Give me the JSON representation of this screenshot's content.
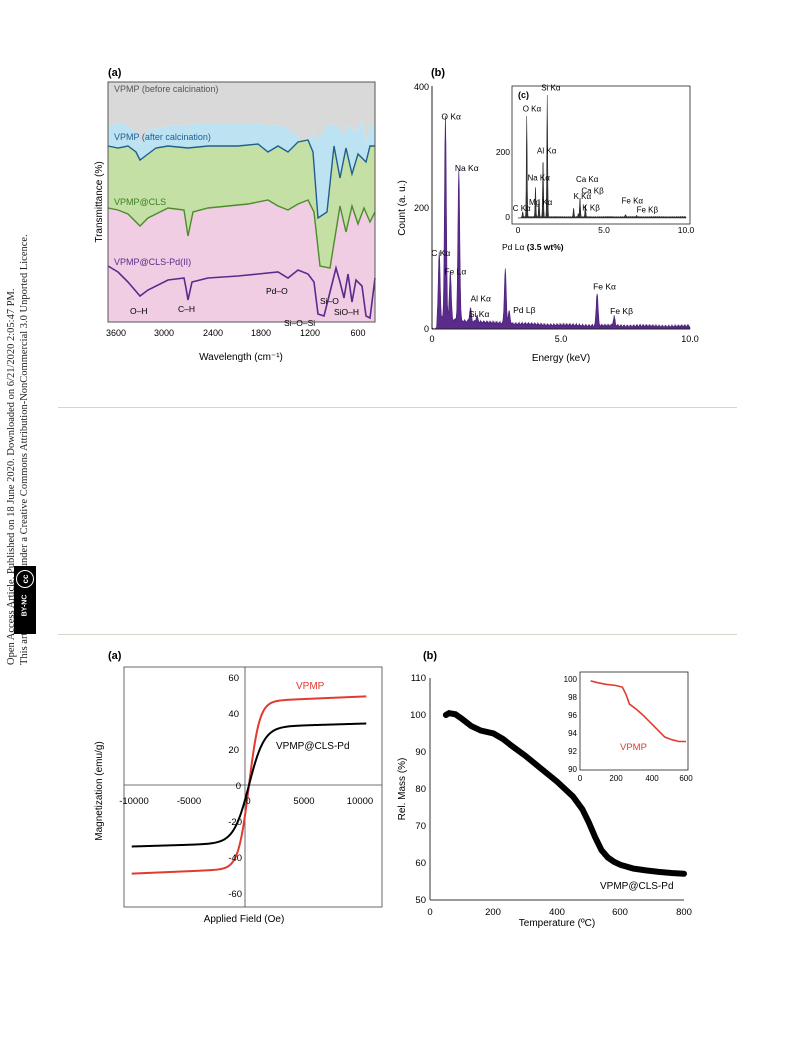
{
  "sidebar": {
    "line1": "Open Access Article. Published on 18 June 2020. Downloaded on 6/21/2020 2:05:47 PM.",
    "line2": "This article is licensed under a Creative Commons Attribution-NonCommercial 3.0 Unported Licence.",
    "badge_cc": "cc",
    "badge_text": "BY-NC"
  },
  "colors": {
    "gray": "#d9d9d9",
    "blue": "#bde3f3",
    "green": "#c5e0a5",
    "pink": "#f0cde3",
    "purple": "#5b2b8c",
    "red": "#e23a30",
    "black": "#000000",
    "line_blue": "#1f5f8f",
    "line_green": "#4a8d2a"
  },
  "chart_data": [
    {
      "panel": "(a)",
      "type": "line",
      "xlabel": "Wavelength (cm⁻¹)",
      "ylabel": "Transmittance (%)",
      "xlim": [
        3700,
        400
      ],
      "xticks": [
        "3600",
        "3000",
        "2400",
        "1800",
        "1200",
        "600"
      ],
      "series": [
        {
          "name": "VPMP (before calcination)"
        },
        {
          "name": "VPMP (after calcination)"
        },
        {
          "name": "VPMP@CLS"
        },
        {
          "name": "VPMP@CLS-Pd(II)"
        }
      ],
      "annotations": [
        "O–H",
        "C–H",
        "Pd–O",
        "Si–O–Si",
        "Si–O",
        "SiO–H"
      ]
    },
    {
      "panel": "(b)",
      "type": "bar",
      "xlabel": "Energy (keV)",
      "ylabel": "Count (a. u.)",
      "xlim": [
        0,
        10
      ],
      "ylim": [
        0,
        400
      ],
      "xticks": [
        "0",
        "5.0",
        "10.0"
      ],
      "yticks": [
        "0",
        "200",
        "400"
      ],
      "peaks": [
        {
          "label": "C Kα",
          "x": 0.28,
          "y": 110
        },
        {
          "label": "O Kα",
          "x": 0.52,
          "y": 335
        },
        {
          "label": "Fe Lα",
          "x": 0.71,
          "y": 80
        },
        {
          "label": "Na Kα",
          "x": 1.04,
          "y": 250
        },
        {
          "label": "Al Kα",
          "x": 1.49,
          "y": 22
        },
        {
          "label": "Si Kα",
          "x": 1.74,
          "y": 10
        },
        {
          "label": "Pd Lα",
          "x": 2.84,
          "y": 90
        },
        {
          "label": "Pd Lβ",
          "x": 2.99,
          "y": 20
        },
        {
          "label": "Fe Kα",
          "x": 6.4,
          "y": 55
        },
        {
          "label": "Fe Kβ",
          "x": 7.06,
          "y": 15
        }
      ],
      "pd_label_suffix": "(3.5 wt%)",
      "inset": {
        "panel": "(c)",
        "xlim": [
          0,
          10
        ],
        "ylim": [
          0,
          310
        ],
        "xticks": [
          "0",
          "5.0",
          "10.0"
        ],
        "yticks": [
          "0",
          "200"
        ],
        "peaks": [
          {
            "label": "C Kα",
            "x": 0.28,
            "y": 12
          },
          {
            "label": "O Kα",
            "x": 0.52,
            "y": 240
          },
          {
            "label": "Na Kα",
            "x": 1.04,
            "y": 70
          },
          {
            "label": "Mg Kα",
            "x": 1.25,
            "y": 45
          },
          {
            "label": "Al Kα",
            "x": 1.49,
            "y": 140
          },
          {
            "label": "Si Kα",
            "x": 1.74,
            "y": 290
          },
          {
            "label": "K Kα",
            "x": 3.31,
            "y": 22
          },
          {
            "label": "K Kβ",
            "x": 3.59,
            "y": 8
          },
          {
            "label": "Ca Kα",
            "x": 3.69,
            "y": 48
          },
          {
            "label": "Ca Kβ",
            "x": 4.01,
            "y": 30
          },
          {
            "label": "Fe Kα",
            "x": 6.4,
            "y": 6
          },
          {
            "label": "Fe Kβ",
            "x": 7.06,
            "y": 3
          }
        ]
      }
    },
    {
      "panel": "(a)",
      "type": "line",
      "xlabel": "Applied Field (Oe)",
      "ylabel": "Magnetization (emu/g)",
      "xlim": [
        -11000,
        11000
      ],
      "ylim": [
        -65,
        65
      ],
      "xticks": [
        "-10000",
        "-5000",
        "0",
        "5000",
        "10000"
      ],
      "yticks": [
        "-60",
        "-40",
        "-20",
        "0",
        "20",
        "40",
        "60"
      ],
      "series": [
        {
          "name": "VPMP",
          "ms": 49
        },
        {
          "name": "VPMP@CLS-Pd",
          "ms": 34
        }
      ]
    },
    {
      "panel": "(b)",
      "type": "line",
      "xlabel": "Temperature (ºC)",
      "ylabel": "Rel. Mass (%)",
      "xlim": [
        0,
        800
      ],
      "ylim": [
        50,
        110
      ],
      "xticks": [
        "0",
        "200",
        "400",
        "600",
        "800"
      ],
      "yticks": [
        "50",
        "60",
        "70",
        "80",
        "90",
        "100",
        "110"
      ],
      "series": [
        {
          "name": "VPMP@CLS-Pd",
          "x": [
            50,
            60,
            80,
            100,
            130,
            160,
            200,
            230,
            260,
            300,
            350,
            400,
            450,
            480,
            500,
            520,
            540,
            560,
            580,
            600,
            640,
            680,
            720,
            760,
            800
          ],
          "y": [
            100,
            100.5,
            100.2,
            99,
            97,
            95.8,
            95,
            93.5,
            91.5,
            89,
            85.5,
            82,
            78,
            74.5,
            71,
            67,
            63.5,
            61.5,
            60.3,
            59.5,
            58.5,
            58,
            57.6,
            57.3,
            57.1
          ]
        }
      ],
      "inset": {
        "xlim": [
          0,
          600
        ],
        "ylim": [
          90,
          101
        ],
        "xticks": [
          "0",
          "200",
          "400",
          "600"
        ],
        "yticks": [
          "90",
          "92",
          "94",
          "96",
          "98",
          "100"
        ],
        "series": [
          {
            "name": "VPMP",
            "x": [
              60,
              100,
              150,
              200,
              240,
              260,
              280,
              320,
              360,
              400,
              440,
              480,
              520,
              560,
              600
            ],
            "y": [
              100,
              99.8,
              99.6,
              99.5,
              99.3,
              98.5,
              97.4,
              96.8,
              96.1,
              95.3,
              94.5,
              93.7,
              93.4,
              93.2,
              93.2
            ]
          }
        ]
      }
    }
  ]
}
